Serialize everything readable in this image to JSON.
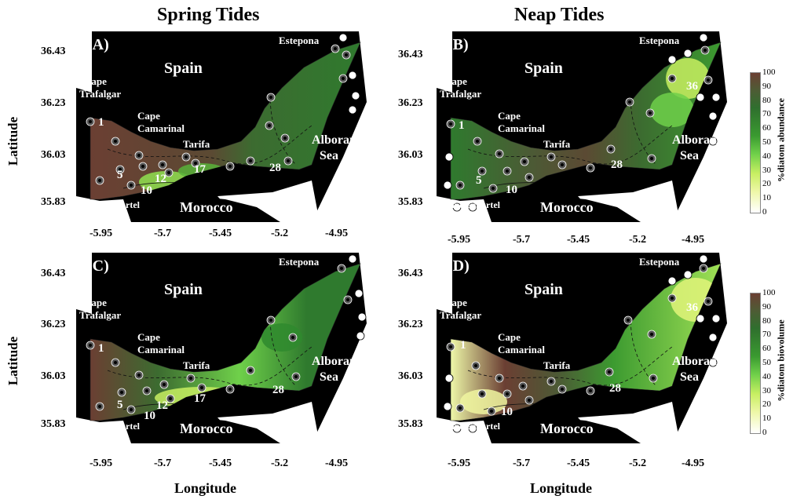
{
  "figure": {
    "col_titles": [
      "Spring Tides",
      "Neap Tides"
    ],
    "ylabel": "Latitude",
    "xlabel": "Longitude"
  },
  "axes": {
    "lat_ticks": [
      "36.43",
      "36.23",
      "36.03",
      "35.83"
    ],
    "lon_ticks": [
      "-5.95",
      "-5.7",
      "-5.45",
      "-5.2",
      "-4.95"
    ]
  },
  "places": {
    "spain": "Spain",
    "morocco": "Morocco",
    "alboran_1": "Alboran",
    "alboran_2": "Sea",
    "estepona": "Estepona",
    "tarifa": "Tarifa",
    "cape_trafalgar_1": "Cape",
    "cape_trafalgar_2": "Trafalgar",
    "cape_camarinal_1": "Cape",
    "cape_camarinal_2": "Camarinal",
    "cape_espartel": "Cape Espartel"
  },
  "panels": [
    {
      "letter": "(A)",
      "stations": [
        "1",
        "5",
        "12",
        "10",
        "17",
        "28"
      ]
    },
    {
      "letter": "(B)",
      "stations": [
        "1",
        "5",
        "10",
        "28",
        "36"
      ]
    },
    {
      "letter": "(C)",
      "stations": [
        "1",
        "5",
        "12",
        "10",
        "17",
        "28"
      ]
    },
    {
      "letter": "(D)",
      "stations": [
        "1",
        "10",
        "28",
        "36"
      ]
    }
  ],
  "colorbars": [
    {
      "label": "%diatom abundance",
      "ticks": [
        "100",
        "90",
        "80",
        "70",
        "60",
        "50",
        "40",
        "30",
        "20",
        "10",
        "0"
      ]
    },
    {
      "label": "%diatom biovolume",
      "ticks": [
        "100",
        "90",
        "80",
        "70",
        "60",
        "50",
        "40",
        "30",
        "20",
        "10",
        "0"
      ]
    }
  ],
  "colors": {
    "land": "#000000",
    "high": "#6b3f33",
    "mid": "#2f6f2e",
    "low": "#d8f060"
  }
}
